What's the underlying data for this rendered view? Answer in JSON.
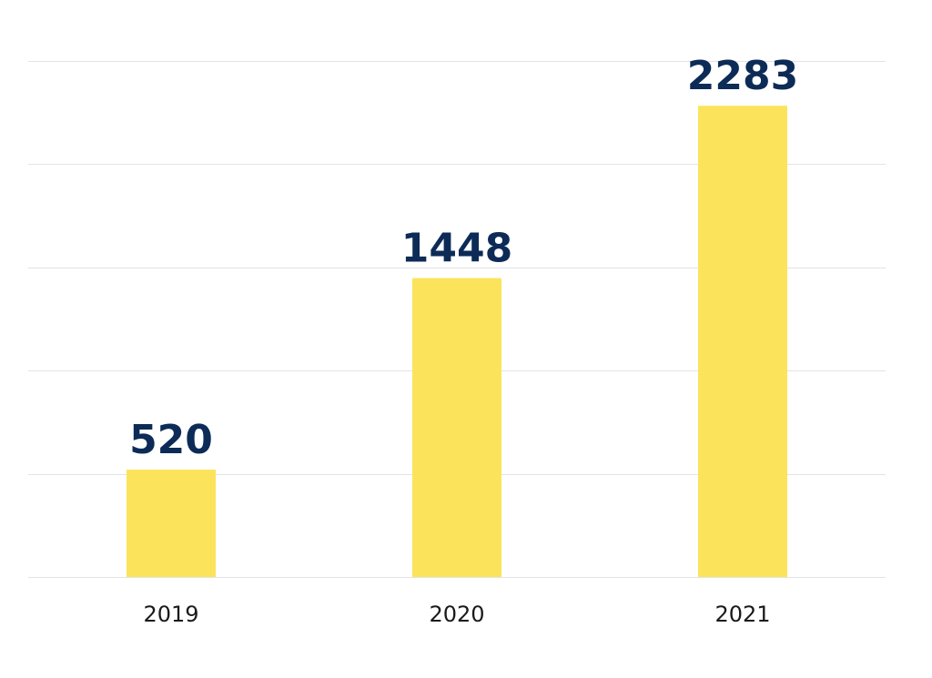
{
  "chart_data": {
    "type": "bar",
    "categories": [
      "2019",
      "2020",
      "2021"
    ],
    "values": [
      520,
      1448,
      2283
    ],
    "data_labels": [
      "520",
      "1448",
      "2283"
    ],
    "ylim": [
      0,
      2500
    ],
    "grid": true,
    "legend": "none",
    "colors": {
      "bar": "#fbe45b",
      "value_label": "#0d2b57",
      "grid": "#e3e3e3",
      "tick_label": "#1a1a1a"
    }
  }
}
